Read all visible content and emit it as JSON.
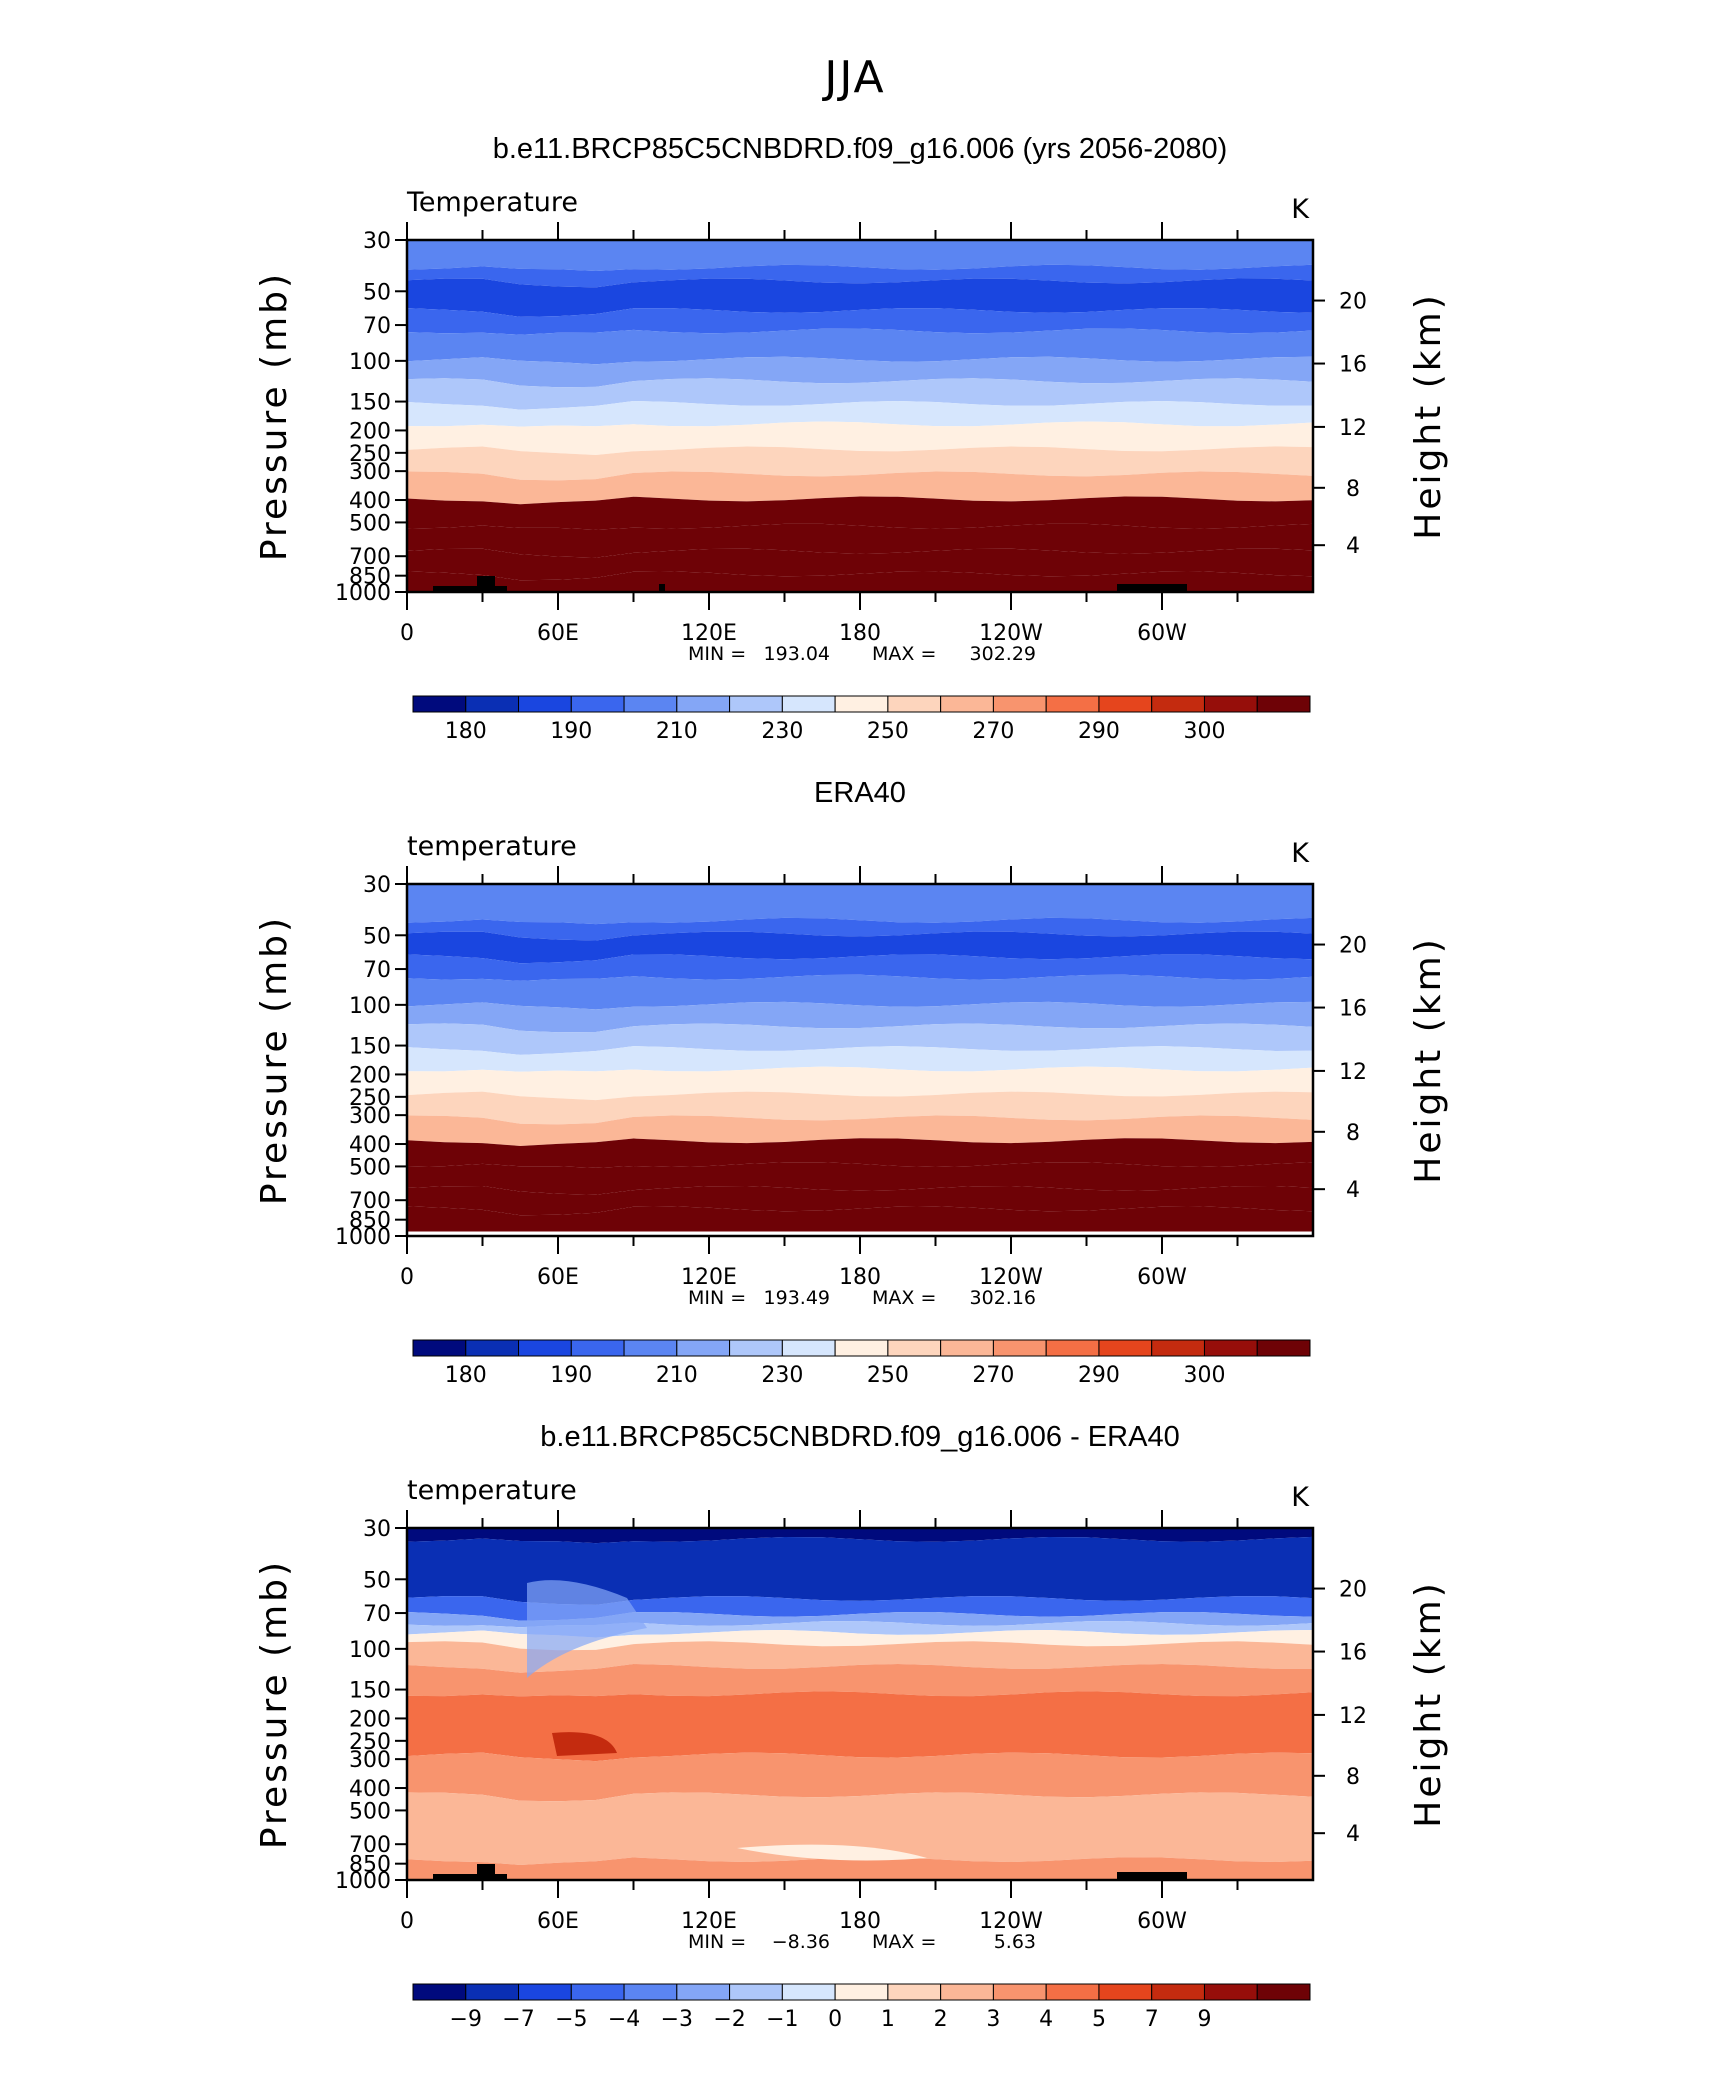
{
  "figure": {
    "title": "JJA"
  },
  "chart_data": [
    {
      "type": "heatmap",
      "title": "b.e11.BRCP85C5CNBDRD.f09_g16.006 (yrs 2056-2080)",
      "variable_label": "Temperature",
      "units": "K",
      "ylabel": "Pressure  (mb)",
      "ylabel_right": "Height  (km)",
      "y_scale": "log",
      "ylim": [
        1000,
        30
      ],
      "y_ticks": [
        "30",
        "50",
        "70",
        "100",
        "150",
        "200",
        "250",
        "300",
        "400",
        "500",
        "700",
        "850",
        "1000"
      ],
      "y_right_ticks": [
        "20",
        "16",
        "12",
        "8",
        "4"
      ],
      "x_tick_labels": [
        "0",
        "60E",
        "120E",
        "180",
        "120W",
        "60W"
      ],
      "min_label": "MIN =",
      "min": "193.04",
      "max_label": "MAX =",
      "max": "302.29",
      "colorbar_labels": [
        "180",
        "190",
        "210",
        "230",
        "250",
        "270",
        "290",
        "300"
      ],
      "palette": [
        "#000a7d",
        "#0a2fb4",
        "#1a46e0",
        "#3a66ee",
        "#5b85f2",
        "#84a6f6",
        "#aec7fa",
        "#d6e6fd",
        "#fff0e2",
        "#fdd5bd",
        "#fbb797",
        "#f8946e",
        "#f46f45",
        "#e5451d",
        "#c42b0f",
        "#960e0a",
        "#6e0206"
      ],
      "level_profile": [
        0,
        2.4,
        3.6,
        6.2,
        8,
        10.5,
        12.4,
        14.4,
        16.2,
        18.4,
        20.6,
        22.8,
        25.2,
        27.4,
        29.4,
        31
      ]
    },
    {
      "type": "heatmap",
      "title": "ERA40",
      "variable_label": "temperature",
      "units": "K",
      "ylabel": "Pressure  (mb)",
      "ylabel_right": "Height  (km)",
      "y_scale": "log",
      "ylim": [
        1000,
        30
      ],
      "y_ticks": [
        "30",
        "50",
        "70",
        "100",
        "150",
        "200",
        "250",
        "300",
        "400",
        "500",
        "700",
        "850",
        "1000"
      ],
      "y_right_ticks": [
        "20",
        "16",
        "12",
        "8",
        "4"
      ],
      "x_tick_labels": [
        "0",
        "60E",
        "120E",
        "180",
        "120W",
        "60W"
      ],
      "min_label": "MIN =",
      "min": "193.49",
      "max_label": "MAX =",
      "max": "302.16",
      "colorbar_labels": [
        "180",
        "190",
        "210",
        "230",
        "250",
        "270",
        "290",
        "300"
      ],
      "palette": [
        "#000a7d",
        "#0a2fb4",
        "#1a46e0",
        "#3a66ee",
        "#5b85f2",
        "#84a6f6",
        "#aec7fa",
        "#d6e6fd",
        "#fff0e2",
        "#fdd5bd",
        "#fbb797",
        "#f8946e",
        "#f46f45",
        "#e5451d",
        "#c42b0f",
        "#960e0a",
        "#6e0206"
      ],
      "level_profile": [
        0,
        3.2,
        4.4,
        6.4,
        8.2,
        10.6,
        12.5,
        14.5,
        16.3,
        18.5,
        20.6,
        22.6,
        24.7,
        26.8,
        28.6,
        30.6
      ]
    },
    {
      "type": "heatmap",
      "title": "b.e11.BRCP85C5CNBDRD.f09_g16.006 - ERA40",
      "variable_label": "temperature",
      "units": "K",
      "ylabel": "Pressure  (mb)",
      "ylabel_right": "Height  (km)",
      "y_scale": "log",
      "ylim": [
        1000,
        30
      ],
      "y_ticks": [
        "30",
        "50",
        "70",
        "100",
        "150",
        "200",
        "250",
        "300",
        "400",
        "500",
        "700",
        "850",
        "1000"
      ],
      "y_right_ticks": [
        "20",
        "16",
        "12",
        "8",
        "4"
      ],
      "x_tick_labels": [
        "0",
        "60E",
        "120E",
        "180",
        "120W",
        "60W"
      ],
      "min_label": "MIN =",
      "min": "−8.36",
      "max_label": "MAX =",
      "max": "5.63",
      "colorbar_labels": [
        "−9",
        "−7",
        "−5",
        "−4",
        "−3",
        "−2",
        "−1",
        "0",
        "1",
        "2",
        "3",
        "4",
        "5",
        "7",
        "9"
      ],
      "palette": [
        "#000a7d",
        "#0a2fb4",
        "#1a46e0",
        "#3a66ee",
        "#5b85f2",
        "#84a6f6",
        "#aec7fa",
        "#d6e6fd",
        "#fff0e2",
        "#fdd5bd",
        "#fbb797",
        "#f8946e",
        "#f46f45",
        "#e5451d",
        "#c42b0f",
        "#960e0a",
        "#6e0206"
      ],
      "bands": [
        {
          "from": 0,
          "to": 1,
          "level": 0
        },
        {
          "from": 1,
          "to": 6.2,
          "level": 1
        },
        {
          "from": 6.2,
          "to": 7.6,
          "level": 3
        },
        {
          "from": 7.6,
          "to": 8.4,
          "level": 5
        },
        {
          "from": 8.4,
          "to": 9.2,
          "level": 6
        },
        {
          "from": 9.2,
          "to": 10.2,
          "level": 8
        },
        {
          "from": 10.2,
          "to": 12.2,
          "level": 10
        },
        {
          "from": 12.2,
          "to": 14.6,
          "level": 11
        },
        {
          "from": 14.6,
          "to": 20,
          "level": 12
        },
        {
          "from": 20,
          "to": 23.5,
          "level": 11
        },
        {
          "from": 23.5,
          "to": 29.2,
          "level": 10
        },
        {
          "from": 29.2,
          "to": 31,
          "level": 11
        }
      ]
    }
  ]
}
